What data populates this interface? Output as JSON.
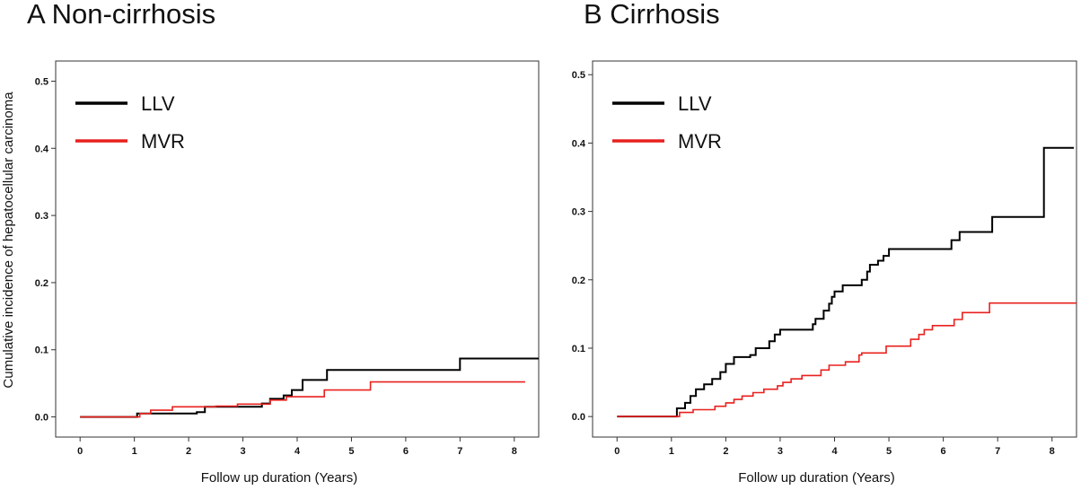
{
  "chart_data": [
    {
      "type": "line",
      "title": "A  Non-cirrhosis",
      "xlabel": "Follow up duration (Years)",
      "ylabel": "Cumulative incidence of hepatocellular carcinoma",
      "xlim": [
        -0.45,
        8.45
      ],
      "ylim": [
        -0.03,
        0.53
      ],
      "xticks": [
        "0",
        "1",
        "2",
        "3",
        "4",
        "5",
        "6",
        "7",
        "8"
      ],
      "yticks": [
        "0.0",
        "0.1",
        "0.2",
        "0.3",
        "0.4",
        "0.5"
      ],
      "grid": false,
      "legend_position": "top-left",
      "series": [
        {
          "name": "LLV",
          "color": "#000000",
          "steps": [
            [
              0,
              0.0
            ],
            [
              1.05,
              0.005
            ],
            [
              2.15,
              0.007
            ],
            [
              2.3,
              0.015
            ],
            [
              3.35,
              0.02
            ],
            [
              3.5,
              0.027
            ],
            [
              3.75,
              0.032
            ],
            [
              3.9,
              0.04
            ],
            [
              4.1,
              0.055
            ],
            [
              4.55,
              0.07
            ],
            [
              7.0,
              0.087
            ],
            [
              8.45,
              0.087
            ]
          ]
        },
        {
          "name": "MVR",
          "color": "#e8211e",
          "steps": [
            [
              0,
              0.0
            ],
            [
              1.1,
              0.005
            ],
            [
              1.3,
              0.01
            ],
            [
              1.7,
              0.015
            ],
            [
              2.5,
              0.016
            ],
            [
              2.9,
              0.019
            ],
            [
              3.5,
              0.025
            ],
            [
              3.8,
              0.03
            ],
            [
              4.5,
              0.04
            ],
            [
              5.35,
              0.052
            ],
            [
              8.2,
              0.052
            ]
          ]
        }
      ]
    },
    {
      "type": "line",
      "title": "B  Cirrhosis",
      "xlabel": "Follow up duration (Years)",
      "ylabel": "",
      "xlim": [
        -0.45,
        8.45
      ],
      "ylim": [
        -0.03,
        0.52
      ],
      "xticks": [
        "0",
        "1",
        "2",
        "3",
        "4",
        "5",
        "6",
        "7",
        "8"
      ],
      "yticks": [
        "0.0",
        "0.1",
        "0.2",
        "0.3",
        "0.4",
        "0.5"
      ],
      "grid": false,
      "legend_position": "top-left",
      "series": [
        {
          "name": "LLV",
          "color": "#000000",
          "steps": [
            [
              0,
              0.0
            ],
            [
              1.1,
              0.012
            ],
            [
              1.25,
              0.02
            ],
            [
              1.35,
              0.03
            ],
            [
              1.45,
              0.04
            ],
            [
              1.6,
              0.047
            ],
            [
              1.75,
              0.055
            ],
            [
              1.9,
              0.065
            ],
            [
              2.0,
              0.077
            ],
            [
              2.15,
              0.087
            ],
            [
              2.45,
              0.09
            ],
            [
              2.55,
              0.1
            ],
            [
              2.8,
              0.11
            ],
            [
              2.9,
              0.12
            ],
            [
              3.0,
              0.127
            ],
            [
              3.6,
              0.135
            ],
            [
              3.65,
              0.143
            ],
            [
              3.8,
              0.155
            ],
            [
              3.9,
              0.165
            ],
            [
              3.95,
              0.175
            ],
            [
              4.0,
              0.183
            ],
            [
              4.15,
              0.192
            ],
            [
              4.5,
              0.2
            ],
            [
              4.6,
              0.212
            ],
            [
              4.65,
              0.222
            ],
            [
              4.8,
              0.228
            ],
            [
              4.9,
              0.235
            ],
            [
              5.0,
              0.245
            ],
            [
              6.15,
              0.258
            ],
            [
              6.3,
              0.27
            ],
            [
              6.9,
              0.292
            ],
            [
              7.85,
              0.393
            ],
            [
              8.4,
              0.393
            ]
          ]
        },
        {
          "name": "MVR",
          "color": "#e8211e",
          "steps": [
            [
              0,
              0.0
            ],
            [
              1.15,
              0.006
            ],
            [
              1.4,
              0.01
            ],
            [
              1.8,
              0.015
            ],
            [
              2.0,
              0.02
            ],
            [
              2.15,
              0.025
            ],
            [
              2.3,
              0.03
            ],
            [
              2.5,
              0.035
            ],
            [
              2.7,
              0.04
            ],
            [
              2.95,
              0.045
            ],
            [
              3.05,
              0.05
            ],
            [
              3.2,
              0.055
            ],
            [
              3.4,
              0.06
            ],
            [
              3.75,
              0.068
            ],
            [
              3.9,
              0.075
            ],
            [
              4.2,
              0.08
            ],
            [
              4.45,
              0.09
            ],
            [
              4.5,
              0.093
            ],
            [
              4.95,
              0.103
            ],
            [
              5.4,
              0.113
            ],
            [
              5.55,
              0.12
            ],
            [
              5.65,
              0.127
            ],
            [
              5.8,
              0.133
            ],
            [
              6.2,
              0.142
            ],
            [
              6.35,
              0.152
            ],
            [
              6.85,
              0.166
            ],
            [
              8.45,
              0.166
            ]
          ]
        }
      ]
    }
  ]
}
